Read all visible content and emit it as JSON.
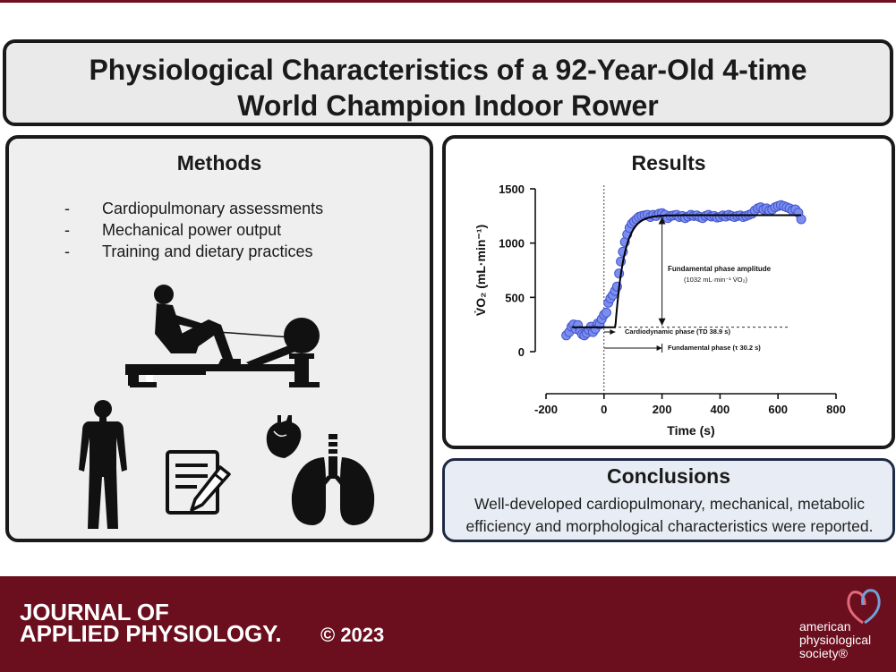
{
  "title": {
    "line1": "Physiological Characteristics of a 92-Year-Old 4-time",
    "line2": "World Champion Indoor Rower"
  },
  "methods": {
    "heading": "Methods",
    "items": [
      "Cardiopulmonary assessments",
      "Mechanical power output",
      "Training and dietary practices"
    ],
    "bullet": "-",
    "icons": [
      "rowing-machine-icon",
      "human-body-icon",
      "notepad-pencil-icon",
      "heart-icon",
      "lungs-icon"
    ]
  },
  "results": {
    "heading": "Results",
    "annotations": {
      "amplitude_title": "Fundamental phase amplitude",
      "amplitude_value": "(1032  mL·min⁻¹ V̇O₂)",
      "cardiodynamic": "Cardiodynamic phase (TD 38.9 s)",
      "fundamental": "Fundamental phase (τ  30.2 s)"
    }
  },
  "chart_data": {
    "type": "scatter",
    "xlabel": "Time (s)",
    "ylabel": "V̇O₂ (mL·min⁻¹)",
    "xlim": [
      -200,
      800
    ],
    "ylim": [
      0,
      1500
    ],
    "xticks": [
      -200,
      0,
      200,
      400,
      600,
      800
    ],
    "yticks": [
      0,
      500,
      1000,
      1500
    ],
    "series": [
      {
        "points": [
          [
            -130,
            150
          ],
          [
            -120,
            180
          ],
          [
            -112,
            230
          ],
          [
            -105,
            250
          ],
          [
            -98,
            210
          ],
          [
            -90,
            245
          ],
          [
            -82,
            190
          ],
          [
            -75,
            160
          ],
          [
            -68,
            150
          ],
          [
            -60,
            170
          ],
          [
            -52,
            200
          ],
          [
            -45,
            230
          ],
          [
            -38,
            180
          ],
          [
            -30,
            210
          ],
          [
            -22,
            260
          ],
          [
            -15,
            250
          ],
          [
            -8,
            300
          ],
          [
            0,
            340
          ],
          [
            8,
            360
          ],
          [
            15,
            450
          ],
          [
            22,
            490
          ],
          [
            30,
            520
          ],
          [
            38,
            560
          ],
          [
            45,
            600
          ],
          [
            52,
            720
          ],
          [
            58,
            830
          ],
          [
            65,
            920
          ],
          [
            72,
            1010
          ],
          [
            80,
            1080
          ],
          [
            88,
            1140
          ],
          [
            96,
            1180
          ],
          [
            104,
            1200
          ],
          [
            112,
            1220
          ],
          [
            120,
            1240
          ],
          [
            130,
            1250
          ],
          [
            140,
            1255
          ],
          [
            150,
            1260
          ],
          [
            160,
            1240
          ],
          [
            170,
            1260
          ],
          [
            180,
            1250
          ],
          [
            190,
            1270
          ],
          [
            200,
            1275
          ],
          [
            210,
            1260
          ],
          [
            220,
            1230
          ],
          [
            230,
            1250
          ],
          [
            240,
            1255
          ],
          [
            250,
            1260
          ],
          [
            260,
            1240
          ],
          [
            270,
            1250
          ],
          [
            280,
            1230
          ],
          [
            290,
            1245
          ],
          [
            300,
            1260
          ],
          [
            310,
            1250
          ],
          [
            320,
            1255
          ],
          [
            330,
            1240
          ],
          [
            340,
            1230
          ],
          [
            350,
            1250
          ],
          [
            360,
            1260
          ],
          [
            370,
            1245
          ],
          [
            380,
            1250
          ],
          [
            390,
            1235
          ],
          [
            400,
            1240
          ],
          [
            410,
            1255
          ],
          [
            420,
            1245
          ],
          [
            430,
            1260
          ],
          [
            440,
            1250
          ],
          [
            450,
            1240
          ],
          [
            460,
            1250
          ],
          [
            470,
            1255
          ],
          [
            480,
            1240
          ],
          [
            490,
            1250
          ],
          [
            500,
            1260
          ],
          [
            510,
            1270
          ],
          [
            520,
            1300
          ],
          [
            530,
            1320
          ],
          [
            540,
            1330
          ],
          [
            550,
            1310
          ],
          [
            560,
            1320
          ],
          [
            570,
            1300
          ],
          [
            580,
            1310
          ],
          [
            590,
            1330
          ],
          [
            600,
            1340
          ],
          [
            610,
            1350
          ],
          [
            620,
            1340
          ],
          [
            630,
            1330
          ],
          [
            640,
            1320
          ],
          [
            650,
            1300
          ],
          [
            660,
            1310
          ],
          [
            670,
            1280
          ],
          [
            680,
            1220
          ]
        ],
        "marker_color": "#7b8ef0",
        "marker_edge": "#4455cc"
      }
    ],
    "fit": {
      "baseline": 225,
      "amplitude": 1032,
      "time_delay": 38.9,
      "tau": 30.2,
      "x_start": -110,
      "x_end": 680,
      "color": "#000000"
    },
    "reference_lines": {
      "time_zero": 0,
      "baseline_dashed": 225,
      "plateau": 1257
    }
  },
  "conclusions": {
    "heading": "Conclusions",
    "text": "Well-developed cardiopulmonary, mechanical, metabolic efficiency and morphological characteristics were reported."
  },
  "footer": {
    "journal_line1": "JOURNAL OF",
    "journal_line2": "APPLIED PHYSIOLOGY.",
    "copyright": "© 2023",
    "society_line1": "american",
    "society_line2": "physiological",
    "society_line3": "society®"
  },
  "colors": {
    "brand": "#6b0e1e",
    "title_bg": "#eaeaea",
    "methods_bg": "#efefef",
    "conclusions_bg": "#e8edf5",
    "marker": "#7b8ef0"
  }
}
